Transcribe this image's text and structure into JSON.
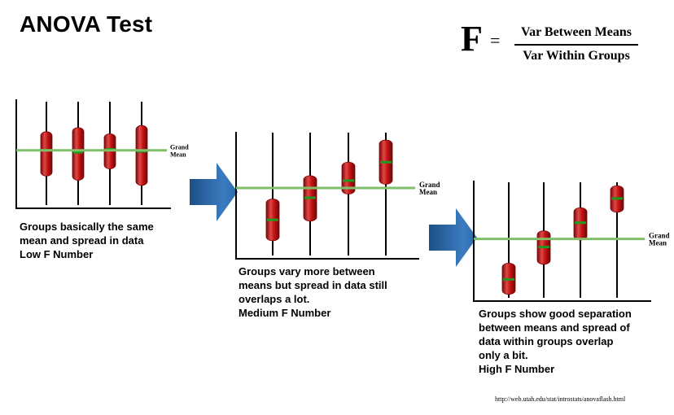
{
  "title": "ANOVA Test",
  "formula": {
    "lhs": "F",
    "equals": "=",
    "numerator": "Var Between Means",
    "denominator": "Var Within Groups"
  },
  "grand_mean_label": [
    "Grand",
    "Mean"
  ],
  "panels": [
    {
      "caption": [
        "Groups basically the same",
        "mean and spread in data",
        "Low F Number"
      ],
      "grand_mean": 0.53,
      "groups": [
        {
          "mean": 0.53,
          "low": 0.28,
          "high": 0.71
        },
        {
          "mean": 0.51,
          "low": 0.24,
          "high": 0.75
        },
        {
          "mean": 0.54,
          "low": 0.35,
          "high": 0.69
        },
        {
          "mean": 0.52,
          "low": 0.19,
          "high": 0.77
        }
      ]
    },
    {
      "caption": [
        "Groups vary more between",
        "means but spread in data still",
        "overlaps a lot.",
        "Medium F Number"
      ],
      "grand_mean": 0.55,
      "groups": [
        {
          "mean": 0.29,
          "low": 0.12,
          "high": 0.46
        },
        {
          "mean": 0.47,
          "low": 0.28,
          "high": 0.65
        },
        {
          "mean": 0.61,
          "low": 0.5,
          "high": 0.76
        },
        {
          "mean": 0.76,
          "low": 0.58,
          "high": 0.94
        }
      ]
    },
    {
      "caption": [
        "Groups show good separation",
        "between means and spread of",
        "data within groups overlap",
        "only a bit.",
        "High F Number"
      ],
      "grand_mean": 0.51,
      "groups": [
        {
          "mean": 0.16,
          "low": 0.03,
          "high": 0.3
        },
        {
          "mean": 0.44,
          "low": 0.29,
          "high": 0.58
        },
        {
          "mean": 0.65,
          "low": 0.5,
          "high": 0.78
        },
        {
          "mean": 0.86,
          "low": 0.74,
          "high": 0.97
        }
      ]
    }
  ],
  "source": "http://web.utah.edu/stat/introstats/anovaflash.html",
  "colors": {
    "grand_mean_line": "#7fbf6a",
    "box_fill": "#c41414",
    "box_highlight": "#e85050",
    "box_shadow": "#7a0808",
    "mean_mark": "#1f9a1f",
    "arrow": "#2b6aa8"
  }
}
